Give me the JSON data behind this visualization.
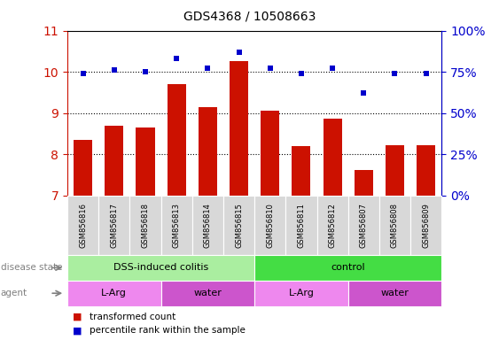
{
  "title": "GDS4368 / 10508663",
  "samples": [
    "GSM856816",
    "GSM856817",
    "GSM856818",
    "GSM856813",
    "GSM856814",
    "GSM856815",
    "GSM856810",
    "GSM856811",
    "GSM856812",
    "GSM856807",
    "GSM856808",
    "GSM856809"
  ],
  "bar_values": [
    8.35,
    8.7,
    8.65,
    9.7,
    9.15,
    10.25,
    9.05,
    8.2,
    8.87,
    7.62,
    8.22,
    8.22
  ],
  "scatter_values_pct": [
    74,
    76,
    75,
    83,
    77,
    87,
    77,
    74,
    77,
    62,
    74,
    74
  ],
  "bar_color": "#cc1100",
  "scatter_color": "#0000cc",
  "ylim_left": [
    7,
    11
  ],
  "ylim_right": [
    0,
    100
  ],
  "yticks_left": [
    7,
    8,
    9,
    10,
    11
  ],
  "yticks_right": [
    0,
    25,
    50,
    75,
    100
  ],
  "ytick_labels_right": [
    "0%",
    "25%",
    "50%",
    "75%",
    "100%"
  ],
  "disease_state_groups": [
    {
      "label": "DSS-induced colitis",
      "start": 0,
      "end": 6,
      "color": "#aaeea0"
    },
    {
      "label": "control",
      "start": 6,
      "end": 12,
      "color": "#44dd44"
    }
  ],
  "agent_groups": [
    {
      "label": "L-Arg",
      "start": 0,
      "end": 3,
      "color": "#ee88ee"
    },
    {
      "label": "water",
      "start": 3,
      "end": 6,
      "color": "#cc55cc"
    },
    {
      "label": "L-Arg",
      "start": 6,
      "end": 9,
      "color": "#ee88ee"
    },
    {
      "label": "water",
      "start": 9,
      "end": 12,
      "color": "#cc55cc"
    }
  ],
  "legend_items": [
    {
      "label": "transformed count",
      "color": "#cc1100"
    },
    {
      "label": "percentile rank within the sample",
      "color": "#0000cc"
    }
  ],
  "label_disease_state": "disease state",
  "label_agent": "agent"
}
